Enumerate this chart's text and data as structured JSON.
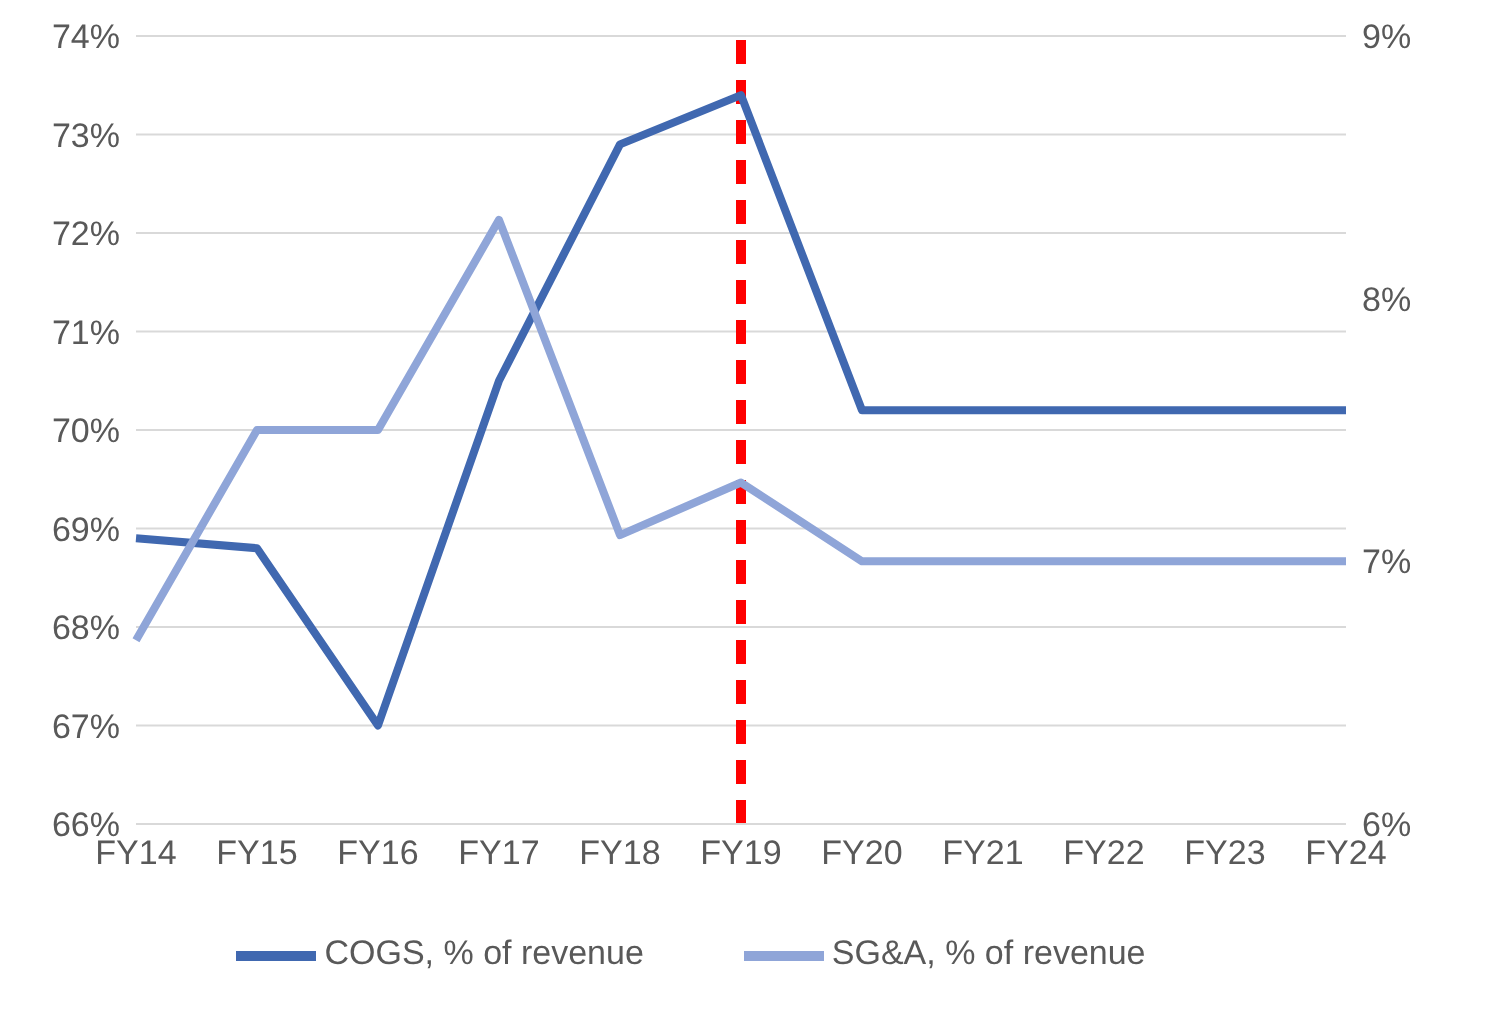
{
  "chart_data": {
    "type": "line",
    "categories": [
      "FY14",
      "FY15",
      "FY16",
      "FY17",
      "FY18",
      "FY19",
      "FY20",
      "FY21",
      "FY22",
      "FY23",
      "FY24"
    ],
    "series": [
      {
        "name": "COGS, % of revenue",
        "color": "#4068b0",
        "values": [
          68.9,
          68.8,
          67.0,
          70.5,
          72.9,
          73.4,
          70.2,
          70.2,
          70.2,
          70.2,
          70.2
        ]
      },
      {
        "name": "SG&A, % of revenue",
        "color": "#8fa5d8",
        "axis": "y2",
        "values": [
          6.7,
          7.5,
          7.5,
          8.3,
          7.1,
          7.3,
          7.0,
          7.0,
          7.0,
          7.0,
          7.0
        ]
      }
    ],
    "ylim": [
      66,
      74
    ],
    "yticks": [
      {
        "value": 66,
        "label": "66%"
      },
      {
        "value": 67,
        "label": "67%"
      },
      {
        "value": 68,
        "label": "68%"
      },
      {
        "value": 69,
        "label": "69%"
      },
      {
        "value": 70,
        "label": "70%"
      },
      {
        "value": 71,
        "label": "71%"
      },
      {
        "value": 72,
        "label": "72%"
      },
      {
        "value": 73,
        "label": "73%"
      },
      {
        "value": 74,
        "label": "74%"
      }
    ],
    "y2lim": [
      6,
      9
    ],
    "y2ticks": [
      {
        "value": 6,
        "label": "6%"
      },
      {
        "value": 7,
        "label": "7%"
      },
      {
        "value": 8,
        "label": "8%"
      },
      {
        "value": 9,
        "label": "9%"
      }
    ],
    "ref_lines": [
      {
        "axis": "x",
        "value": "FY19",
        "color": "#ff0000",
        "line_style": "dashed"
      }
    ],
    "grid": "y",
    "legend": "bottom",
    "marker": "none",
    "line_style": "solid"
  }
}
